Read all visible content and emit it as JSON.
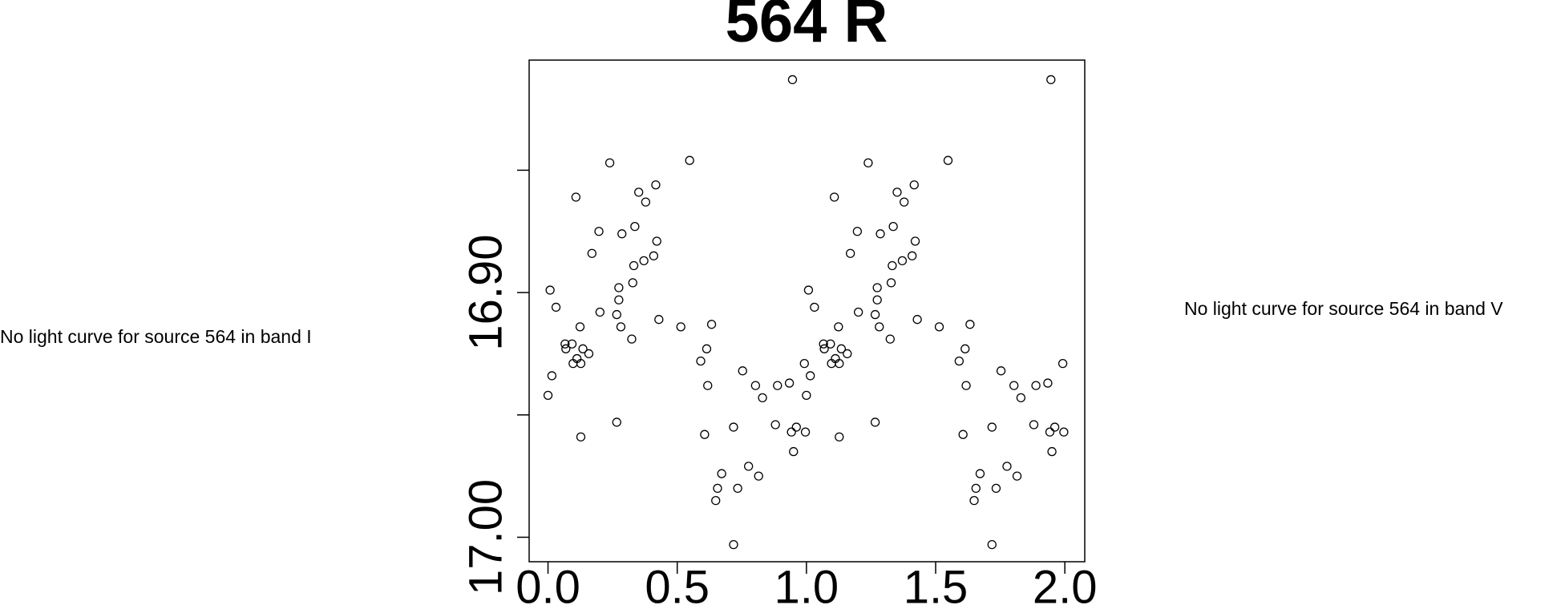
{
  "chart_data": {
    "type": "scatter",
    "title": "564 R",
    "left_note": "No light curve for source 564 in band I",
    "right_note": "No light curve for source 564 in band V",
    "xlim": [
      -0.073,
      2.077
    ],
    "ylim": [
      17.01,
      16.805
    ],
    "xticks": [
      {
        "value": 0,
        "label": "0.0"
      },
      {
        "value": 0.5,
        "label": "0.5"
      },
      {
        "value": 1,
        "label": "1.0"
      },
      {
        "value": 1.5,
        "label": "1.5"
      },
      {
        "value": 2,
        "label": "2.0"
      }
    ],
    "yticks": [
      {
        "value": 16.85,
        "label": null
      },
      {
        "value": 16.9,
        "label": "16.90"
      },
      {
        "value": 16.95,
        "label": null
      },
      {
        "value": 17.0,
        "label": "17.00"
      }
    ],
    "color": "#000000",
    "x": [
      0.0,
      0.008,
      0.015,
      0.031,
      0.066,
      0.069,
      0.093,
      0.097,
      0.112,
      0.124,
      0.127,
      0.135,
      0.108,
      0.127,
      0.158,
      0.17,
      0.197,
      0.201,
      0.239,
      0.266,
      0.266,
      0.274,
      0.274,
      0.282,
      0.286,
      0.324,
      0.328,
      0.332,
      0.336,
      0.351,
      0.371,
      0.378,
      0.409,
      0.417,
      0.421,
      0.429,
      0.514,
      0.548,
      0.591,
      0.606,
      0.614,
      0.618,
      0.633,
      0.649,
      0.656,
      0.672,
      0.718,
      0.718,
      0.734,
      0.753,
      0.776,
      0.803,
      0.815,
      0.83,
      0.88,
      0.888,
      0.934,
      0.942,
      0.95,
      0.961,
      0.992,
      0.996,
      0.946,
      1.0,
      1.008,
      1.015,
      1.031,
      1.066,
      1.069,
      1.093,
      1.097,
      1.112,
      1.124,
      1.127,
      1.135,
      1.108,
      1.127,
      1.158,
      1.17,
      1.197,
      1.201,
      1.239,
      1.266,
      1.266,
      1.274,
      1.274,
      1.282,
      1.286,
      1.324,
      1.328,
      1.332,
      1.336,
      1.351,
      1.371,
      1.378,
      1.409,
      1.417,
      1.421,
      1.429,
      1.514,
      1.548,
      1.591,
      1.606,
      1.614,
      1.618,
      1.633,
      1.649,
      1.656,
      1.672,
      1.718,
      1.718,
      1.734,
      1.753,
      1.776,
      1.803,
      1.815,
      1.83,
      1.88,
      1.888,
      1.934,
      1.942,
      1.95,
      1.961,
      1.992,
      1.996,
      1.946
    ],
    "values": [
      16.942,
      16.899,
      16.934,
      16.906,
      16.921,
      16.923,
      16.921,
      16.929,
      16.927,
      16.914,
      16.929,
      16.923,
      16.861,
      16.959,
      16.925,
      16.884,
      16.875,
      16.908,
      16.847,
      16.953,
      16.909,
      16.898,
      16.903,
      16.914,
      16.876,
      16.919,
      16.896,
      16.889,
      16.873,
      16.859,
      16.887,
      16.863,
      16.885,
      16.856,
      16.879,
      16.911,
      16.914,
      16.846,
      16.928,
      16.958,
      16.923,
      16.938,
      16.913,
      16.985,
      16.98,
      16.974,
      16.955,
      17.003,
      16.98,
      16.932,
      16.971,
      16.938,
      16.975,
      16.943,
      16.954,
      16.938,
      16.937,
      16.957,
      16.965,
      16.955,
      16.929,
      16.957,
      16.813,
      16.942,
      16.899,
      16.934,
      16.906,
      16.921,
      16.923,
      16.921,
      16.929,
      16.927,
      16.914,
      16.929,
      16.923,
      16.861,
      16.959,
      16.925,
      16.884,
      16.875,
      16.908,
      16.847,
      16.953,
      16.909,
      16.898,
      16.903,
      16.914,
      16.876,
      16.919,
      16.896,
      16.889,
      16.873,
      16.859,
      16.887,
      16.863,
      16.885,
      16.856,
      16.879,
      16.911,
      16.914,
      16.846,
      16.928,
      16.958,
      16.923,
      16.938,
      16.913,
      16.985,
      16.98,
      16.974,
      16.955,
      17.003,
      16.98,
      16.932,
      16.971,
      16.938,
      16.975,
      16.943,
      16.954,
      16.938,
      16.937,
      16.957,
      16.965,
      16.955,
      16.929,
      16.957,
      16.813
    ]
  }
}
